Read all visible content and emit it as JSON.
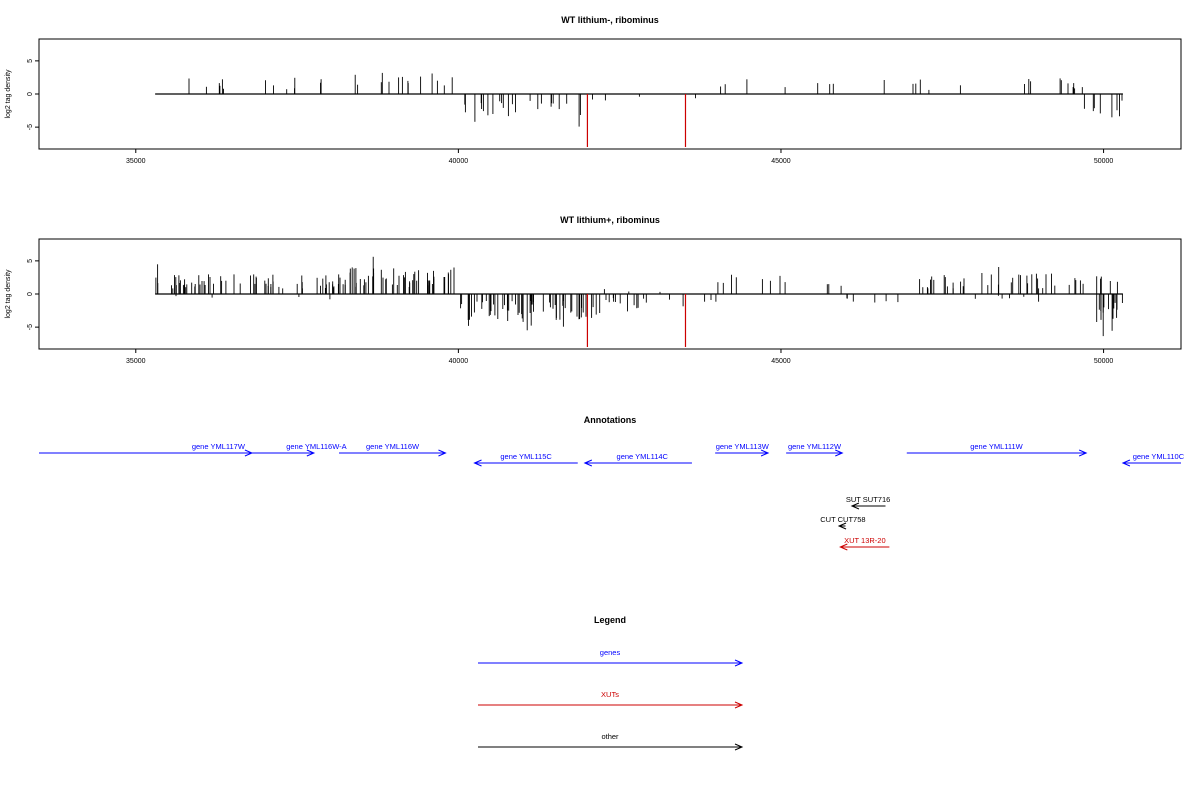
{
  "chart_data": [
    {
      "type": "bar",
      "title": "WT lithium-, ribominus",
      "ylabel": "log2 tag density",
      "xlim": [
        33500,
        51200
      ],
      "ylim": [
        -8.3,
        8.3
      ],
      "yticks": [
        -5,
        0,
        5
      ],
      "xticks": [
        35000,
        40000,
        45000,
        50000
      ],
      "baseline": 0,
      "baseline_x": [
        35300,
        50300
      ],
      "segments": [
        {
          "from": 35300,
          "to": 37500,
          "sign": 1,
          "amp": 2.5,
          "density": 0.045
        },
        {
          "from": 37500,
          "to": 38100,
          "sign": 1,
          "amp": 1.8,
          "density": 0.02
        },
        {
          "from": 38100,
          "to": 40000,
          "sign": 1,
          "amp": 3.2,
          "density": 0.07
        },
        {
          "from": 40000,
          "to": 41900,
          "sign": -1,
          "amp": 3.4,
          "density": 0.12
        },
        {
          "from": 41900,
          "to": 44000,
          "sign": -1,
          "amp": 1.2,
          "density": 0.015
        },
        {
          "from": 44000,
          "to": 46300,
          "sign": 1,
          "amp": 2.3,
          "density": 0.025
        },
        {
          "from": 46300,
          "to": 47000,
          "sign": 1,
          "amp": 1.5,
          "density": 0.005
        },
        {
          "from": 47000,
          "to": 49700,
          "sign": 1,
          "amp": 2.4,
          "density": 0.05
        },
        {
          "from": 49700,
          "to": 50300,
          "sign": -1,
          "amp": 4.0,
          "density": 0.12
        }
      ],
      "highlights": [
        {
          "x": 42000,
          "value": -8.0,
          "color": "#cc0000"
        },
        {
          "x": 43520,
          "value": -8.0,
          "color": "#cc0000"
        }
      ],
      "seed": 7
    },
    {
      "type": "bar",
      "title": "WT lithium+, ribominus",
      "ylabel": "log2 tag density",
      "xlim": [
        33500,
        51200
      ],
      "ylim": [
        -8.3,
        8.3
      ],
      "yticks": [
        -5,
        0,
        5
      ],
      "xticks": [
        35000,
        40000,
        45000,
        50000
      ],
      "baseline": 0,
      "baseline_x": [
        35300,
        50300
      ],
      "segments": [
        {
          "from": 35300,
          "to": 38100,
          "sign": 1,
          "amp": 3.0,
          "density": 0.22
        },
        {
          "from": 35300,
          "to": 38100,
          "sign": -1,
          "amp": 0.8,
          "density": 0.01
        },
        {
          "from": 38100,
          "to": 40000,
          "sign": 1,
          "amp": 4.2,
          "density": 0.3
        },
        {
          "from": 40000,
          "to": 42200,
          "sign": -1,
          "amp": 4.0,
          "density": 0.28
        },
        {
          "from": 42200,
          "to": 44000,
          "sign": -1,
          "amp": 2.2,
          "density": 0.09
        },
        {
          "from": 42200,
          "to": 44000,
          "sign": 1,
          "amp": 0.8,
          "density": 0.01
        },
        {
          "from": 44000,
          "to": 46000,
          "sign": 1,
          "amp": 3.0,
          "density": 0.05
        },
        {
          "from": 46000,
          "to": 47000,
          "sign": -1,
          "amp": 1.6,
          "density": 0.05
        },
        {
          "from": 47000,
          "to": 49600,
          "sign": 1,
          "amp": 3.2,
          "density": 0.14
        },
        {
          "from": 47000,
          "to": 49600,
          "sign": -1,
          "amp": 1.0,
          "density": 0.02
        },
        {
          "from": 49600,
          "to": 50300,
          "sign": -1,
          "amp": 4.5,
          "density": 0.22
        },
        {
          "from": 49600,
          "to": 50300,
          "sign": 1,
          "amp": 3.0,
          "density": 0.08
        }
      ],
      "highlights": [
        {
          "x": 42000,
          "value": -8.0,
          "color": "#cc0000"
        },
        {
          "x": 43520,
          "value": -8.0,
          "color": "#cc0000"
        }
      ],
      "seed": 31
    },
    {
      "type": "annotation-track",
      "title": "Annotations",
      "xlim": [
        33500,
        51200
      ],
      "features": [
        {
          "label": "gene YML117W",
          "start": 33500,
          "end": 36800,
          "strand": "+",
          "row": 0,
          "color": "#0000ff",
          "label_x": 36280
        },
        {
          "label": "gene YML116W-A",
          "start": 35800,
          "end": 37760,
          "strand": "+",
          "row": 0,
          "color": "#0000ff",
          "label_x": 37800
        },
        {
          "label": "gene YML116W",
          "start": 38150,
          "end": 39800,
          "strand": "+",
          "row": 0,
          "color": "#0000ff",
          "label_x": 38980
        },
        {
          "label": "gene YML115C",
          "start": 40250,
          "end": 41850,
          "strand": "-",
          "row": 1,
          "color": "#0000ff",
          "label_x": 41050
        },
        {
          "label": "gene YML114C",
          "start": 41960,
          "end": 43620,
          "strand": "-",
          "row": 1,
          "color": "#0000ff",
          "label_x": 42850
        },
        {
          "label": "gene YML113W",
          "start": 43980,
          "end": 44800,
          "strand": "+",
          "row": 0,
          "color": "#0000ff",
          "label_x": 44400
        },
        {
          "label": "gene YML112W",
          "start": 45080,
          "end": 45950,
          "strand": "+",
          "row": 0,
          "color": "#0000ff",
          "label_x": 45520
        },
        {
          "label": "gene YML111W",
          "start": 46950,
          "end": 49730,
          "strand": "+",
          "row": 0,
          "color": "#0000ff",
          "label_x": 48340
        },
        {
          "label": "gene YML110C",
          "start": 50300,
          "end": 51200,
          "strand": "-",
          "row": 1,
          "color": "#0000ff",
          "label_x": 50850
        },
        {
          "label": "SUT SUT716",
          "start": 46100,
          "end": 46620,
          "strand": "-",
          "row": 2,
          "color": "#000000",
          "label_x": 46350
        },
        {
          "label": "CUT CUT758",
          "start": 45900,
          "end": 46000,
          "strand": "-",
          "row": 3,
          "color": "#000000",
          "label_x": 45960
        },
        {
          "label": "XUT 13R-20",
          "start": 45920,
          "end": 46680,
          "strand": "-",
          "row": 4,
          "color": "#cc0000",
          "label_x": 46300
        }
      ]
    }
  ],
  "legend": {
    "title": "Legend",
    "items": [
      {
        "label": "genes",
        "color": "#0000ff"
      },
      {
        "label": "XUTs",
        "color": "#cc0000"
      },
      {
        "label": "other",
        "color": "#000000"
      }
    ]
  }
}
